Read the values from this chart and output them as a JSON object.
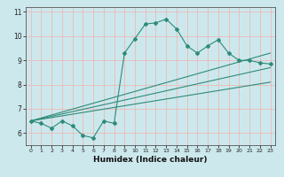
{
  "title": "",
  "xlabel": "Humidex (Indice chaleur)",
  "ylabel": "",
  "bg_color": "#cce8ec",
  "line_color": "#2e8b7a",
  "grid_color": "#f0b0b0",
  "xlim": [
    -0.5,
    23.5
  ],
  "ylim": [
    5.5,
    11.2
  ],
  "yticks": [
    6,
    7,
    8,
    9,
    10,
    11
  ],
  "xticks": [
    0,
    1,
    2,
    3,
    4,
    5,
    6,
    7,
    8,
    9,
    10,
    11,
    12,
    13,
    14,
    15,
    16,
    17,
    18,
    19,
    20,
    21,
    22,
    23
  ],
  "curve1_x": [
    0,
    1,
    2,
    3,
    4,
    5,
    6,
    7,
    8,
    9,
    10,
    11,
    12,
    13,
    14,
    15,
    16,
    17,
    18,
    19,
    20,
    21,
    22,
    23
  ],
  "curve1_y": [
    6.5,
    6.4,
    6.2,
    6.5,
    6.3,
    5.9,
    5.8,
    6.5,
    6.4,
    9.3,
    9.9,
    10.5,
    10.55,
    10.7,
    10.3,
    9.6,
    9.3,
    9.6,
    9.85,
    9.3,
    9.0,
    9.0,
    8.9,
    8.85
  ],
  "line2_x": [
    0,
    23
  ],
  "line2_y": [
    6.5,
    9.3
  ],
  "line3_x": [
    0,
    23
  ],
  "line3_y": [
    6.5,
    8.7
  ],
  "line4_x": [
    0,
    23
  ],
  "line4_y": [
    6.5,
    8.1
  ]
}
